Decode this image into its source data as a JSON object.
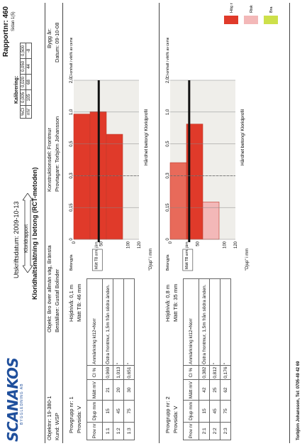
{
  "header": {
    "logo": "SCANAKOS",
    "logo_sub": "BYGGLEDNING AB",
    "rapport": "Rapportnr: 460",
    "sidan": "Sidan 1(5)",
    "utskrift": "Utskriftsdatum: 2009-10-13",
    "arrow_label": "Kloridrapport",
    "title": "Kloridhaltsmätning i betong (RCT-metoden)"
  },
  "kalibrering": {
    "title": "Kalibrering:",
    "row1": [
      "%Cl",
      "0,005",
      "0,020",
      "0,050",
      "0,500"
    ],
    "row2": [
      "mV",
      "105",
      "68",
      "44",
      "-8"
    ]
  },
  "info": {
    "objektnr": "Objektnr: 19-380-1",
    "kund": "Kund: WSP",
    "objekt": "Objekt: Bro över allmän väg, Bränsta",
    "bestallare": "Beställare: Gustaf Bolinder",
    "konstruktionsdel": "Konstruktionsdel: Frontmur",
    "provtagare": "Provtagare: Torbjörn Johansson",
    "byggar": "Bygg år:",
    "datum": "Datum: 09-10-08"
  },
  "groups": [
    {
      "provgrupp": "Provgrupp nr: 1",
      "provsida": "Provsida: V",
      "hojdniva": "Höjdnivå: 0,1   m",
      "matt_tb": "Mätt TB: 46   mm",
      "cols": [
        "Prov nr",
        "Djup mm",
        "Mätt mV",
        "Cl %",
        "Anmärkning kl12=Norr"
      ],
      "rows": [
        [
          "1:1",
          "15",
          "21",
          "0,969",
          "Östra frontmur, 1,5m från södra änden."
        ],
        [
          "1:2",
          "45",
          "20",
          "1,013",
          "\""
        ],
        [
          "1:3",
          "75",
          "30",
          "0,651",
          "\""
        ]
      ]
    },
    {
      "provgrupp": "Provgrupp nr: 2",
      "provsida": "Provsida: V",
      "hojdniva": "Höjdnivå: 0,8   m",
      "matt_tb": "Mätt TB: 35   mm",
      "cols": [
        "Prov nr",
        "Djup mm",
        "Mätt mV",
        "Cl %",
        "Anmärkning kl12=Norr"
      ],
      "rows": [
        [
          "2:1",
          "15",
          "42",
          "0,382",
          "Östra frontmur, 1,5m från södra änden."
        ],
        [
          "2:2",
          "45",
          "25",
          "0,812",
          "\""
        ],
        [
          "2:3",
          "75",
          "62",
          "0,176",
          "\""
        ]
      ]
    }
  ],
  "chart_common": {
    "xticks": [
      "0",
      "0,15",
      "0,3",
      "0,5",
      "1,0",
      "2,0"
    ],
    "yticks": [
      "0",
      "50",
      "100",
      "120"
    ],
    "ylabel": "\"Djup\" i mm",
    "xlabel": "Hårdhet betong/ Kloridprofil",
    "corner_left": "Betongyta",
    "corner_right": "Cl-omhalt i vikt% av cementvikt",
    "mtb_box": "Mätt TB arm. järn"
  },
  "chart_data": [
    {
      "type": "bar",
      "orientation": "horizontal",
      "title": "Provgrupp nr: 1",
      "x_axis": "Cl-omhalt i vikt% av cementvikt",
      "xticks": [
        "0",
        "0,15",
        "0,3",
        "0,5",
        "1,0",
        "2,0"
      ],
      "y_axis": "\"Djup\" i mm",
      "ylim": [
        0,
        120
      ],
      "bars": [
        {
          "depth_from": 0,
          "depth_to": 30,
          "cl": 0.969
        },
        {
          "depth_from": 30,
          "depth_to": 60,
          "cl": 1.013
        },
        {
          "depth_from": 60,
          "depth_to": 90,
          "cl": 0.651
        }
      ],
      "matt_tb_mm": 46
    },
    {
      "type": "bar",
      "orientation": "horizontal",
      "title": "Provgrupp nr: 2",
      "x_axis": "Cl-omhalt i vikt% av cementvikt",
      "xticks": [
        "0",
        "0,15",
        "0,3",
        "0,5",
        "1,0",
        "2,0"
      ],
      "y_axis": "\"Djup\" i mm",
      "ylim": [
        0,
        120
      ],
      "bars": [
        {
          "depth_from": 0,
          "depth_to": 30,
          "cl": 0.382
        },
        {
          "depth_from": 30,
          "depth_to": 60,
          "cl": 0.812
        },
        {
          "depth_from": 60,
          "depth_to": 90,
          "cl": 0.176
        }
      ],
      "matt_tb_mm": 35
    }
  ],
  "legend": {
    "items": [
      {
        "label": "Hög risk",
        "color": "#e03a2a"
      },
      {
        "label": "Risk",
        "color": "#f3b8b8"
      },
      {
        "label": "Bra",
        "color": "#cde04a"
      }
    ]
  },
  "footer": "Torbjörn Johansson, Tel: 0705-49 42 69"
}
